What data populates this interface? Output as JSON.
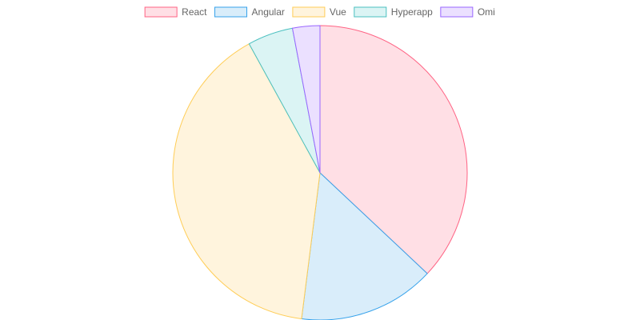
{
  "chart_data": {
    "type": "pie",
    "categories": [
      "React",
      "Angular",
      "Vue",
      "Hyperapp",
      "Omi"
    ],
    "values": [
      37,
      15,
      40,
      5,
      3
    ],
    "colors": {
      "fill": [
        "#ffdfe5",
        "#d9edfa",
        "#fff4dd",
        "#dbf4f4",
        "#ebe0ff"
      ],
      "border": [
        "#ff6384",
        "#36a2eb",
        "#ffcd56",
        "#4bc0c0",
        "#9966ff"
      ]
    },
    "legend": {
      "position": "top",
      "items": [
        "React",
        "Angular",
        "Vue",
        "Hyperapp",
        "Omi"
      ]
    },
    "start_angle": "top (12 o'clock), clockwise"
  }
}
